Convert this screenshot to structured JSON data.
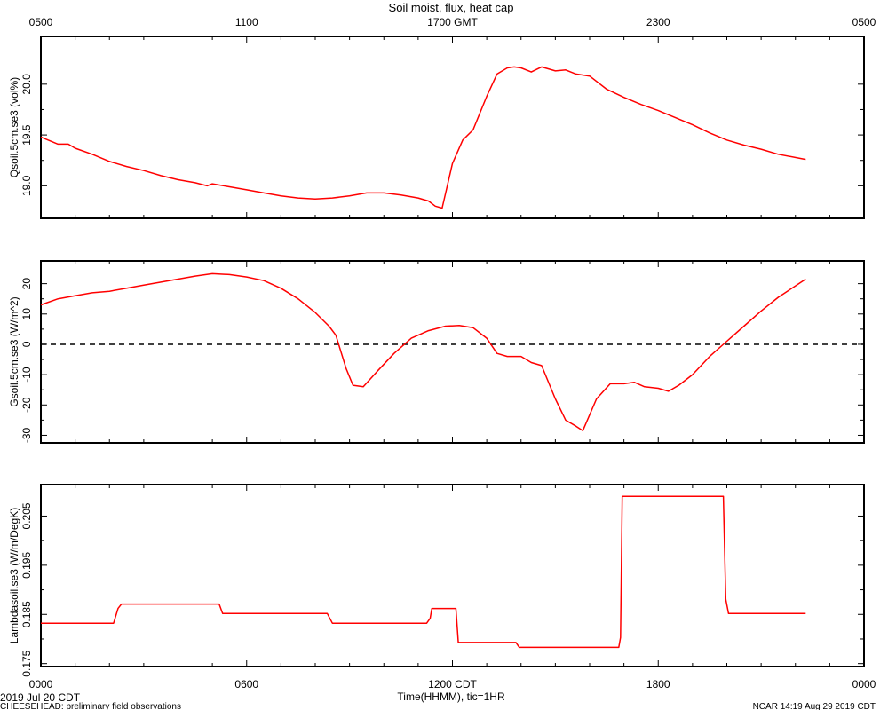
{
  "title": "Soil moist, flux, heat cap",
  "top_axis_labels": [
    "0500",
    "1100",
    "1700 GMT",
    "2300",
    "0500"
  ],
  "bottom_axis_labels": [
    "0000",
    "0600",
    "1200 CDT",
    "1800",
    "0000"
  ],
  "xlabel": "Time(HHMM), tic=1HR",
  "date_label": "2019 Jul 20 CDT",
  "footer_left": "CHEESEHEAD: preliminary field observations",
  "footer_right": "NCAR 14:19 Aug 29 2019 CDT",
  "colors": {
    "series": "#ff0000",
    "axis": "#000000"
  },
  "chart_data": [
    {
      "type": "line",
      "ylabel": "Qsoil.5cm.se3 (vol%)",
      "xlim": [
        0,
        24
      ],
      "ylim": [
        18.68,
        20.47
      ],
      "yticks": [
        19.0,
        19.5,
        20.0
      ],
      "ytick_labels": [
        "19.0",
        "19.5",
        "20.0"
      ],
      "series": [
        {
          "x": [
            0,
            0.5,
            0.8,
            1,
            1.5,
            2,
            2.5,
            3,
            3.5,
            4,
            4.5,
            4.85,
            5,
            5.5,
            6,
            6.5,
            7,
            7.5,
            8,
            8.5,
            9,
            9.5,
            10,
            10.5,
            11,
            11.3,
            11.5,
            11.7,
            12,
            12.3,
            12.6,
            13,
            13.3,
            13.6,
            13.8,
            14,
            14.3,
            14.6,
            15,
            15.3,
            15.6,
            16,
            16.5,
            17,
            17.5,
            18,
            18.5,
            19,
            19.5,
            20,
            20.5,
            21,
            21.5,
            22.3
          ],
          "y": [
            19.48,
            19.41,
            19.41,
            19.37,
            19.31,
            19.24,
            19.19,
            19.15,
            19.1,
            19.06,
            19.03,
            19.0,
            19.02,
            18.99,
            18.96,
            18.93,
            18.9,
            18.88,
            18.87,
            18.88,
            18.9,
            18.93,
            18.93,
            18.91,
            18.88,
            18.85,
            18.8,
            18.78,
            19.22,
            19.45,
            19.55,
            19.88,
            20.1,
            20.16,
            20.17,
            20.16,
            20.12,
            20.17,
            20.13,
            20.14,
            20.1,
            20.08,
            19.95,
            19.87,
            19.8,
            19.74,
            19.67,
            19.6,
            19.52,
            19.45,
            19.4,
            19.36,
            19.31,
            19.26
          ]
        }
      ]
    },
    {
      "type": "line",
      "ylabel": "Gsoil.5cm.se3 (W/m^2)",
      "xlim": [
        0,
        24
      ],
      "ylim": [
        -32.5,
        27.5
      ],
      "yticks": [
        -30,
        -20,
        -10,
        0,
        10,
        20
      ],
      "ytick_labels": [
        "-30",
        "-20",
        "-10",
        "0",
        "10",
        "20"
      ],
      "reference_line_y": 0,
      "series": [
        {
          "x": [
            0,
            0.5,
            1,
            1.5,
            2,
            2.5,
            3,
            3.5,
            4,
            4.5,
            5,
            5.5,
            6,
            6.5,
            7,
            7.5,
            8,
            8.4,
            8.6,
            8.9,
            9.1,
            9.4,
            9.8,
            10.3,
            10.8,
            11.3,
            11.8,
            12.2,
            12.6,
            13,
            13.3,
            13.6,
            14,
            14.3,
            14.6,
            15,
            15.3,
            15.6,
            15.8,
            16.2,
            16.6,
            17,
            17.3,
            17.6,
            18,
            18.3,
            18.6,
            19,
            19.5,
            20,
            20.5,
            21,
            21.5,
            22.3
          ],
          "y": [
            13,
            15,
            16,
            17,
            17.5,
            18.5,
            19.5,
            20.5,
            21.5,
            22.5,
            23.3,
            23.0,
            22.2,
            21.0,
            18.5,
            15.0,
            10.5,
            6,
            3,
            -8,
            -13.5,
            -14,
            -9,
            -3,
            2,
            4.5,
            6,
            6.2,
            5.5,
            2,
            -3,
            -4,
            -4,
            -6,
            -7,
            -18,
            -25,
            -27,
            -28.5,
            -18,
            -13,
            -13,
            -12.5,
            -14,
            -14.5,
            -15.5,
            -13.5,
            -10,
            -4,
            1,
            6,
            11,
            15.5,
            21.5
          ]
        }
      ]
    },
    {
      "type": "line",
      "ylabel": "Lambdasoil.se3 (W/m/DegK)",
      "xlim": [
        0,
        24
      ],
      "ylim": [
        0.1744,
        0.2114
      ],
      "yticks": [
        0.175,
        0.185,
        0.195,
        0.205
      ],
      "ytick_labels": [
        "0.175",
        "0.185",
        "0.195",
        "0.205"
      ],
      "series": [
        {
          "x": [
            0,
            2.12,
            2.25,
            2.35,
            5.2,
            5.3,
            8.35,
            8.5,
            11.25,
            11.35,
            11.4,
            12.1,
            12.17,
            13.85,
            13.95,
            16.85,
            16.9,
            16.95,
            19.9,
            19.97,
            20.05,
            22.3
          ],
          "y": [
            0.1832,
            0.1832,
            0.1862,
            0.1871,
            0.1871,
            0.1852,
            0.1852,
            0.1832,
            0.1832,
            0.1842,
            0.1862,
            0.1862,
            0.1793,
            0.1793,
            0.1783,
            0.1783,
            0.1803,
            0.209,
            0.209,
            0.1881,
            0.1852,
            0.1852
          ]
        }
      ]
    }
  ]
}
